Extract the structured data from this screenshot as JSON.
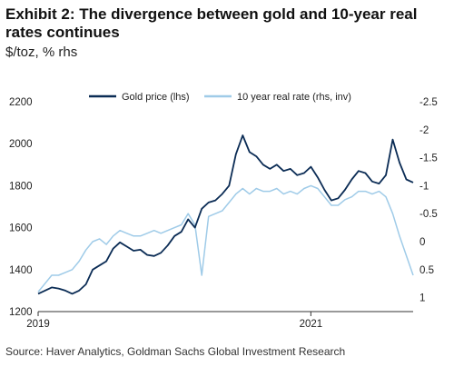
{
  "header": {
    "title": "Exhibit 2: The divergence between gold and 10-year real rates continues",
    "subtitle": "$/toz, % rhs"
  },
  "footer": {
    "source": "Source: Haver Analytics, Goldman Sachs Global Investment Research"
  },
  "colors": {
    "gold": "#0b2c55",
    "real_rate": "#9fcbe8",
    "axis": "#333333"
  },
  "chart_data": {
    "type": "line",
    "title": "Exhibit 2: The divergence between gold and 10-year real rates continues",
    "subtitle": "$/toz, % rhs",
    "x_axis": {
      "ticks": [
        "2019",
        "2021"
      ],
      "tick_positions": [
        2019.0,
        2021.0
      ],
      "range": [
        2019.0,
        2021.75
      ]
    },
    "y_left": {
      "range": [
        1200,
        2200
      ],
      "ticks": [
        1200,
        1400,
        1600,
        1800,
        2000,
        2200
      ]
    },
    "y_right": {
      "range": [
        1.25,
        -2.5
      ],
      "ticks": [
        1,
        0.5,
        0,
        -0.5,
        -1,
        -1.5,
        -2,
        -2.5
      ],
      "inverted": true
    },
    "legend": {
      "position": "top"
    },
    "grid": false,
    "series": [
      {
        "name": "Gold price (lhs)",
        "axis": "left",
        "x": [
          2019.0,
          2019.05,
          2019.1,
          2019.15,
          2019.2,
          2019.25,
          2019.3,
          2019.35,
          2019.4,
          2019.45,
          2019.5,
          2019.55,
          2019.6,
          2019.65,
          2019.7,
          2019.75,
          2019.8,
          2019.85,
          2019.9,
          2019.95,
          2020.0,
          2020.05,
          2020.1,
          2020.15,
          2020.2,
          2020.25,
          2020.3,
          2020.35,
          2020.4,
          2020.45,
          2020.5,
          2020.55,
          2020.6,
          2020.65,
          2020.7,
          2020.75,
          2020.8,
          2020.85,
          2020.9,
          2020.95,
          2021.0,
          2021.05,
          2021.1,
          2021.15,
          2021.2,
          2021.25,
          2021.3,
          2021.35,
          2021.4,
          2021.45,
          2021.5,
          2021.55,
          2021.6,
          2021.65,
          2021.7,
          2021.75
        ],
        "y": [
          1285,
          1300,
          1315,
          1310,
          1300,
          1285,
          1300,
          1330,
          1400,
          1420,
          1440,
          1500,
          1530,
          1510,
          1490,
          1495,
          1470,
          1465,
          1480,
          1515,
          1560,
          1580,
          1640,
          1600,
          1690,
          1720,
          1730,
          1760,
          1800,
          1950,
          2040,
          1960,
          1940,
          1900,
          1880,
          1900,
          1870,
          1880,
          1850,
          1860,
          1890,
          1840,
          1780,
          1730,
          1740,
          1780,
          1830,
          1870,
          1860,
          1820,
          1810,
          1850,
          2020,
          1910,
          1830,
          1815
        ]
      },
      {
        "name": "10 year real rate  (rhs, inv)",
        "axis": "right",
        "x": [
          2019.0,
          2019.05,
          2019.1,
          2019.15,
          2019.2,
          2019.25,
          2019.3,
          2019.35,
          2019.4,
          2019.45,
          2019.5,
          2019.55,
          2019.6,
          2019.65,
          2019.7,
          2019.75,
          2019.8,
          2019.85,
          2019.9,
          2019.95,
          2020.0,
          2020.05,
          2020.1,
          2020.15,
          2020.2,
          2020.25,
          2020.3,
          2020.35,
          2020.4,
          2020.45,
          2020.5,
          2020.55,
          2020.6,
          2020.65,
          2020.7,
          2020.75,
          2020.8,
          2020.85,
          2020.9,
          2020.95,
          2021.0,
          2021.05,
          2021.1,
          2021.15,
          2021.2,
          2021.25,
          2021.3,
          2021.35,
          2021.4,
          2021.45,
          2021.5,
          2021.55,
          2021.6,
          2021.65,
          2021.7,
          2021.75
        ],
        "y": [
          0.9,
          0.75,
          0.6,
          0.6,
          0.55,
          0.5,
          0.35,
          0.15,
          0.0,
          -0.05,
          0.05,
          -0.1,
          -0.2,
          -0.15,
          -0.1,
          -0.1,
          -0.15,
          -0.2,
          -0.15,
          -0.2,
          -0.25,
          -0.3,
          -0.5,
          -0.3,
          0.6,
          -0.45,
          -0.5,
          -0.55,
          -0.7,
          -0.85,
          -0.95,
          -0.85,
          -0.95,
          -0.9,
          -0.9,
          -0.95,
          -0.85,
          -0.9,
          -0.85,
          -0.95,
          -1.0,
          -0.95,
          -0.8,
          -0.65,
          -0.65,
          -0.75,
          -0.8,
          -0.9,
          -0.9,
          -0.85,
          -0.9,
          -0.8,
          -0.5,
          -0.1,
          0.25,
          0.6
        ]
      }
    ]
  }
}
